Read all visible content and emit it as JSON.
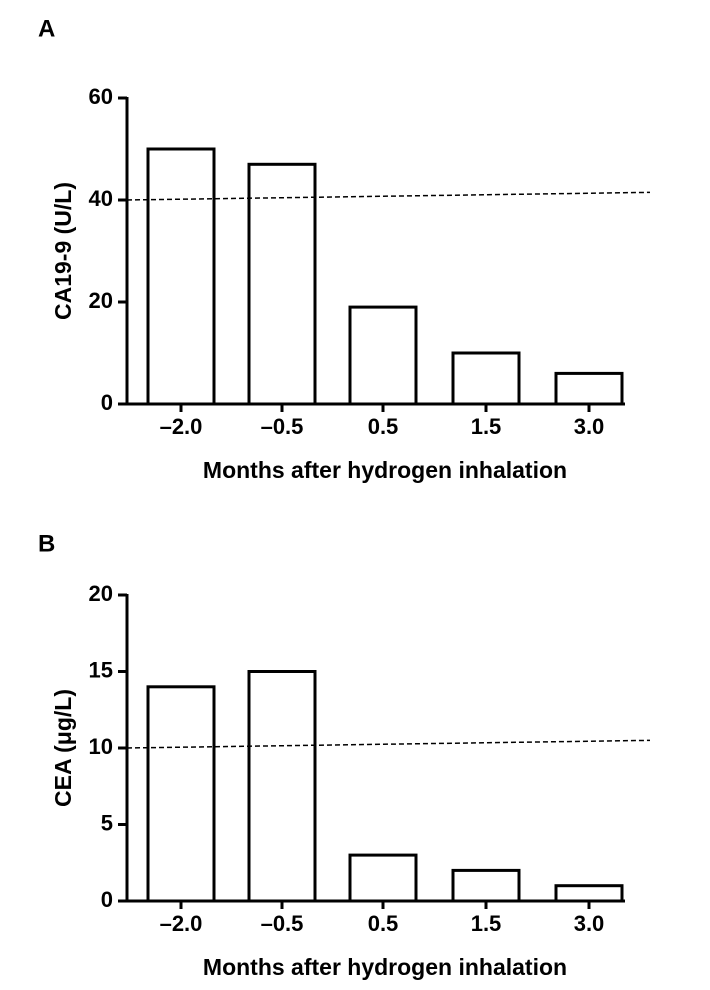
{
  "chart_data": [
    {
      "type": "bar",
      "panel": "A",
      "x_label": "Months after hydrogen inhalation",
      "y_label": "CA19-9 (U/L)",
      "categories": [
        "–2.0",
        "–0.5",
        "0.5",
        "1.5",
        "3.0"
      ],
      "values": [
        50,
        47,
        19,
        10,
        6
      ],
      "ylim": [
        0,
        60
      ],
      "yticks": [
        0,
        20,
        40,
        60
      ],
      "reference_line": [
        40,
        41.5
      ],
      "color": "#ffffff"
    },
    {
      "type": "bar",
      "panel": "B",
      "x_label": "Months after hydrogen inhalation",
      "y_label": "CEA (μg/L)",
      "categories": [
        "–2.0",
        "–0.5",
        "0.5",
        "1.5",
        "3.0"
      ],
      "values": [
        14,
        15,
        3,
        2,
        1
      ],
      "ylim": [
        0,
        20
      ],
      "yticks": [
        0,
        5,
        10,
        15,
        20
      ],
      "reference_line": [
        10,
        10.5
      ],
      "color": "#ffffff"
    }
  ]
}
